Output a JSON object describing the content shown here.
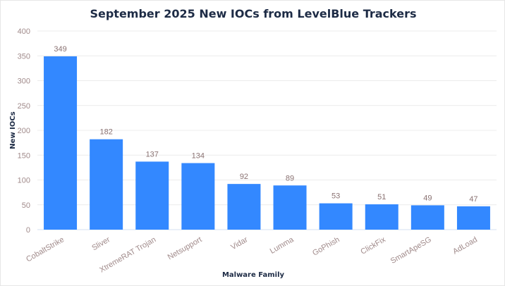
{
  "chart_data": {
    "type": "bar",
    "title": "September 2025 New IOCs from LevelBlue Trackers",
    "xlabel": "Malware Family",
    "ylabel": "New IOCs",
    "categories": [
      "CobaltStrike",
      "Sliver",
      "XtremeRAT Trojan",
      "Netsupport",
      "Vidar",
      "Lumma",
      "GoPhish",
      "ClickFix",
      "SmartApeSG",
      "AdLoad"
    ],
    "values": [
      349,
      182,
      137,
      134,
      92,
      89,
      53,
      51,
      49,
      47
    ],
    "ylim": [
      0,
      400
    ],
    "yticks": [
      0,
      50,
      100,
      150,
      200,
      250,
      300,
      350,
      400
    ],
    "grid": true,
    "legend": "none",
    "bar_color": "#3388ff",
    "data_labels": true
  }
}
